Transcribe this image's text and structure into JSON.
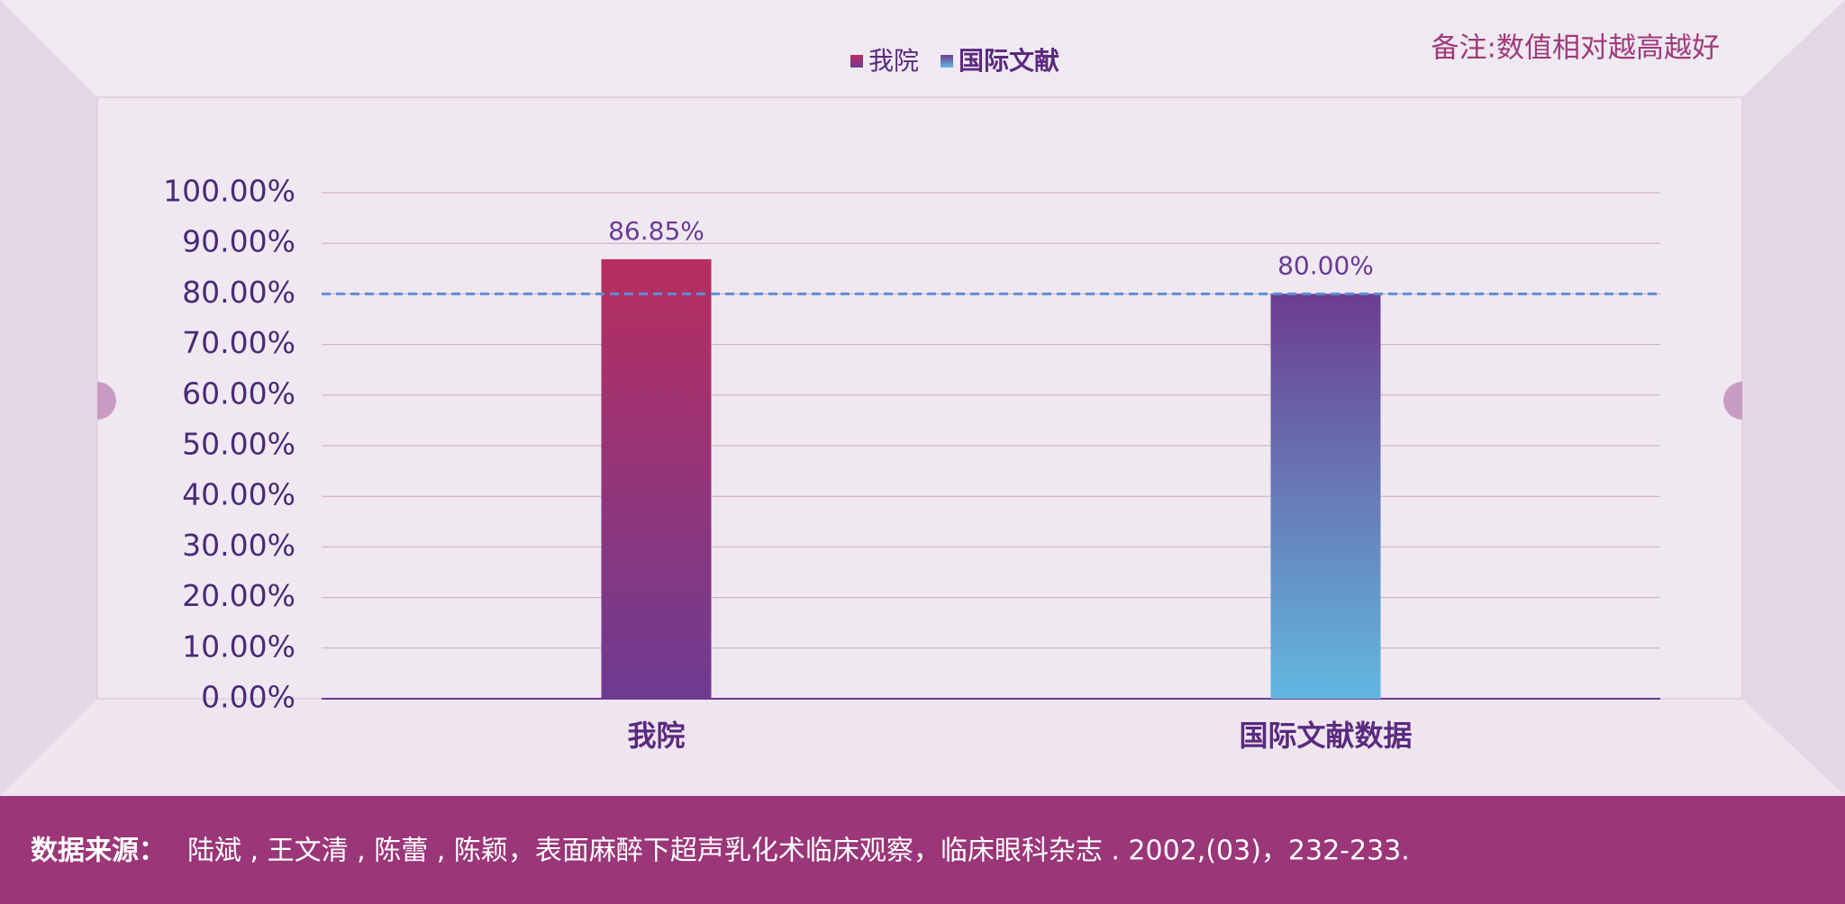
{
  "chart_data": {
    "type": "bar",
    "note": "备注:数值相对越高越好",
    "categories": [
      "我院",
      "国际文献数据"
    ],
    "series": [
      {
        "name": "我院",
        "gradient": [
          "#b82e5f",
          "#6e3b92"
        ],
        "values": [
          86.85,
          null
        ],
        "value_labels": [
          "86.85%",
          null
        ]
      },
      {
        "name": "国际文献",
        "gradient": [
          "#6c3d90",
          "#62b8e2"
        ],
        "values": [
          null,
          80
        ],
        "value_labels": [
          null,
          "80.00%"
        ]
      }
    ],
    "ylim": [
      0,
      100
    ],
    "yticks": [
      {
        "value": 0,
        "label": "0.00%"
      },
      {
        "value": 10,
        "label": "10.00%"
      },
      {
        "value": 20,
        "label": "20.00%"
      },
      {
        "value": 30,
        "label": "30.00%"
      },
      {
        "value": 40,
        "label": "40.00%"
      },
      {
        "value": 50,
        "label": "50.00%"
      },
      {
        "value": 60,
        "label": "60.00%"
      },
      {
        "value": 70,
        "label": "70.00%"
      },
      {
        "value": 80,
        "label": "80.00%"
      },
      {
        "value": 90,
        "label": "90.00%"
      },
      {
        "value": 100,
        "label": "100.00%"
      }
    ],
    "reference_line": 80,
    "grid": true,
    "source_label": "数据来源：",
    "source": "陆斌 , 王文清 , 陈蕾 , 陈颖，表面麻醉下超声乳化术临床观察，临床眼科杂志 . 2002,(03)，232-233."
  }
}
